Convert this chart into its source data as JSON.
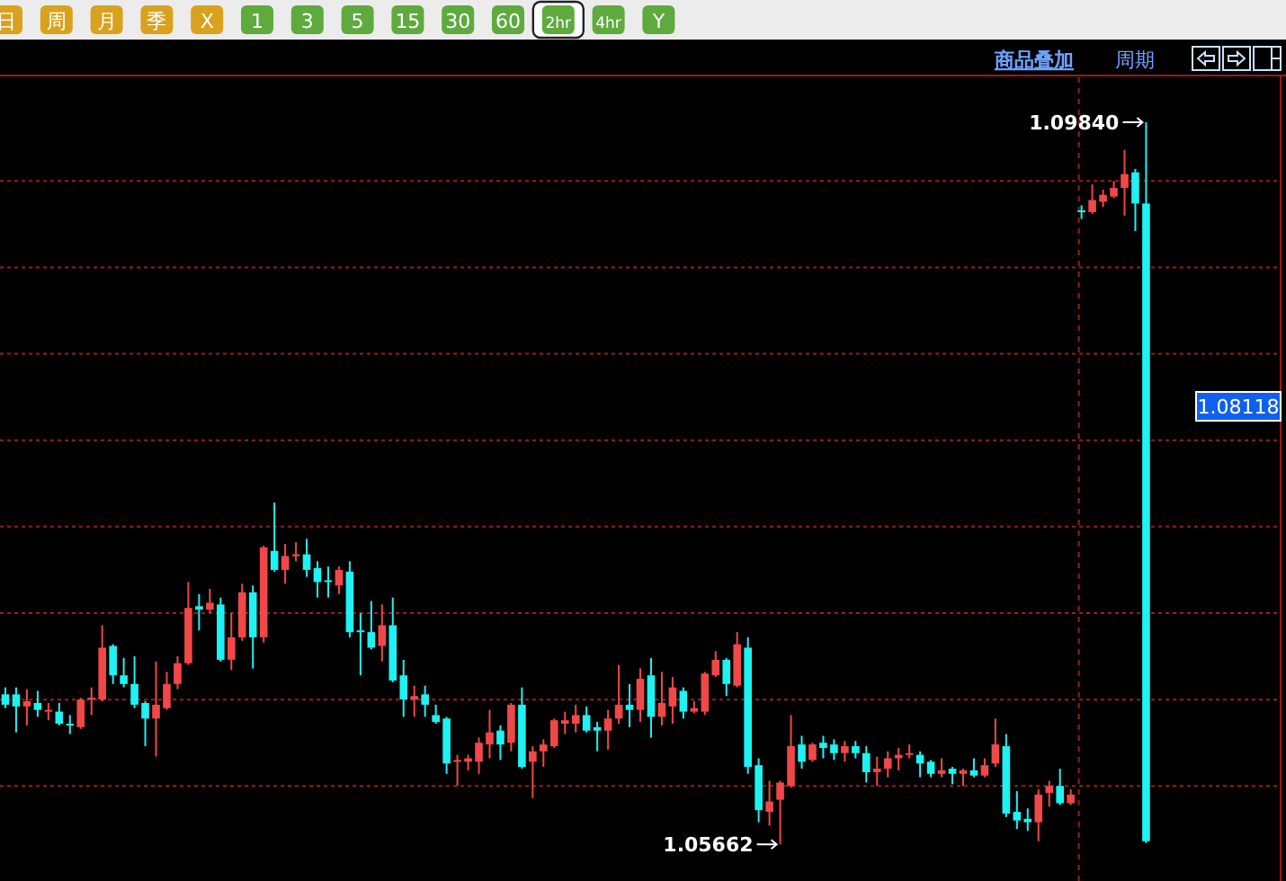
{
  "chart_data": {
    "type": "candlestick",
    "categories": [
      null,
      null,
      null,
      null,
      null,
      null,
      null,
      null,
      null,
      null,
      null,
      null,
      null,
      null,
      null,
      null,
      null,
      null,
      null,
      null,
      null,
      null,
      null,
      null,
      null,
      null,
      null,
      null,
      null,
      null,
      null,
      null,
      null,
      null,
      null,
      null,
      null,
      null,
      null,
      null,
      null,
      null,
      null,
      null,
      null,
      null,
      null,
      null,
      null,
      null,
      null,
      null,
      null,
      null,
      null,
      null,
      null,
      null,
      null,
      null,
      null,
      null,
      null,
      null,
      null,
      null,
      null,
      null,
      null,
      null,
      null,
      null,
      null,
      null,
      null,
      null,
      null,
      null,
      null,
      null,
      null,
      null,
      null,
      null,
      null,
      null,
      null,
      null,
      null,
      null,
      null,
      null,
      null,
      null,
      null,
      null,
      null,
      null,
      null,
      null,
      null,
      null,
      null,
      null,
      null,
      null,
      null
    ],
    "ohlc": [
      [
        1.0653,
        1.0657,
        1.0645,
        1.0647
      ],
      [
        1.0653,
        1.0657,
        1.0631,
        1.0646
      ],
      [
        1.0646,
        1.0656,
        1.0635,
        1.0649
      ],
      [
        1.0648,
        1.0655,
        1.064,
        1.0644
      ],
      [
        1.0643,
        1.0648,
        1.0638,
        1.0644
      ],
      [
        1.0643,
        1.0648,
        1.0635,
        1.0636
      ],
      [
        1.0636,
        1.0641,
        1.063,
        1.0635
      ],
      [
        1.0634,
        1.0651,
        1.0633,
        1.065
      ],
      [
        1.065,
        1.0657,
        1.0641,
        1.0651
      ],
      [
        1.065,
        1.0693,
        1.0649,
        1.068
      ],
      [
        1.0681,
        1.0682,
        1.0659,
        1.0664
      ],
      [
        1.0664,
        1.0674,
        1.0657,
        1.0659
      ],
      [
        1.0659,
        1.0675,
        1.0645,
        1.0647
      ],
      [
        1.0648,
        1.0649,
        1.0623,
        1.0639
      ],
      [
        1.0639,
        1.0672,
        1.0617,
        1.0647
      ],
      [
        1.0645,
        1.0666,
        1.0644,
        1.0659
      ],
      [
        1.0659,
        1.0675,
        1.0656,
        1.0671
      ],
      [
        1.0671,
        1.0718,
        1.067,
        1.0703
      ],
      [
        1.0704,
        1.0711,
        1.069,
        1.0702
      ],
      [
        1.0702,
        1.0714,
        1.07,
        1.0706
      ],
      [
        1.0705,
        1.0709,
        1.0672,
        1.0673
      ],
      [
        1.0673,
        1.07,
        1.0667,
        1.0686
      ],
      [
        1.0686,
        1.0717,
        1.0684,
        1.0712
      ],
      [
        1.0712,
        1.0716,
        1.0668,
        1.0686
      ],
      [
        1.0686,
        1.0739,
        1.0683,
        1.0738
      ],
      [
        1.0736,
        1.0764,
        1.0724,
        1.0725
      ],
      [
        1.0725,
        1.074,
        1.0717,
        1.0733
      ],
      [
        1.0733,
        1.0741,
        1.073,
        1.0734
      ],
      [
        1.0734,
        1.0743,
        1.0721,
        1.0725
      ],
      [
        1.0726,
        1.073,
        1.0709,
        1.0718
      ],
      [
        1.0719,
        1.0727,
        1.0709,
        1.0718
      ],
      [
        1.0716,
        1.0727,
        1.0711,
        1.0725
      ],
      [
        1.0724,
        1.073,
        1.0686,
        1.0689
      ],
      [
        1.069,
        1.07,
        1.0664,
        1.0689
      ],
      [
        1.0689,
        1.0707,
        1.0679,
        1.068
      ],
      [
        1.0681,
        1.0705,
        1.0672,
        1.0693
      ],
      [
        1.0693,
        1.0709,
        1.066,
        1.0661
      ],
      [
        1.0664,
        1.0673,
        1.064,
        1.065
      ],
      [
        1.065,
        1.0658,
        1.064,
        1.0652
      ],
      [
        1.0653,
        1.0658,
        1.064,
        1.0647
      ],
      [
        1.0641,
        1.0647,
        1.0636,
        1.0637
      ],
      [
        1.0639,
        1.064,
        1.0607,
        1.0613
      ],
      [
        1.0614,
        1.0618,
        1.06,
        1.0615
      ],
      [
        1.0614,
        1.0618,
        1.0609,
        1.0616
      ],
      [
        1.0614,
        1.0628,
        1.0607,
        1.0625
      ],
      [
        1.0624,
        1.0644,
        1.0616,
        1.0631
      ],
      [
        1.0632,
        1.0635,
        1.0615,
        1.0624
      ],
      [
        1.0625,
        1.0648,
        1.062,
        1.0647
      ],
      [
        1.0647,
        1.0657,
        1.061,
        1.0611
      ],
      [
        1.0614,
        1.0623,
        1.0593,
        1.062
      ],
      [
        1.062,
        1.0627,
        1.0611,
        1.0624
      ],
      [
        1.0623,
        1.0639,
        1.0622,
        1.0638
      ],
      [
        1.0636,
        1.0643,
        1.063,
        1.0638
      ],
      [
        1.0636,
        1.0647,
        1.0631,
        1.0641
      ],
      [
        1.0641,
        1.0646,
        1.0631,
        1.0632
      ],
      [
        1.0634,
        1.0637,
        1.062,
        1.0632
      ],
      [
        1.0632,
        1.0644,
        1.0621,
        1.0639
      ],
      [
        1.0639,
        1.067,
        1.0636,
        1.0647
      ],
      [
        1.0647,
        1.0659,
        1.0634,
        1.0644
      ],
      [
        1.0644,
        1.0668,
        1.0637,
        1.0662
      ],
      [
        1.0664,
        1.0674,
        1.0628,
        1.064
      ],
      [
        1.064,
        1.0666,
        1.0635,
        1.0648
      ],
      [
        1.0646,
        1.0663,
        1.0636,
        1.0657
      ],
      [
        1.0655,
        1.0657,
        1.0639,
        1.0643
      ],
      [
        1.0643,
        1.0649,
        1.0642,
        1.0645
      ],
      [
        1.0643,
        1.0666,
        1.0641,
        1.0665
      ],
      [
        1.0664,
        1.0678,
        1.0663,
        1.0673
      ],
      [
        1.0673,
        1.0674,
        1.0652,
        1.0659
      ],
      [
        1.0658,
        1.0689,
        1.0657,
        1.0682
      ],
      [
        1.068,
        1.0686,
        1.0607,
        1.0611
      ],
      [
        1.0612,
        1.0616,
        1.0579,
        1.0586
      ],
      [
        1.0585,
        1.0603,
        1.0577,
        1.0591
      ],
      [
        1.0592,
        1.0603,
        1.05662,
        1.0602
      ],
      [
        1.06,
        1.0641,
        1.0599,
        1.0623
      ],
      [
        1.0624,
        1.0629,
        1.061,
        1.0614
      ],
      [
        1.0615,
        1.0625,
        1.0614,
        1.0624
      ],
      [
        1.0625,
        1.0629,
        1.0616,
        1.0622
      ],
      [
        1.0624,
        1.0627,
        1.0615,
        1.0619
      ],
      [
        1.0619,
        1.0626,
        1.0614,
        1.0623
      ],
      [
        1.0623,
        1.0626,
        1.0616,
        1.0619
      ],
      [
        1.0619,
        1.0623,
        1.0602,
        1.0608
      ],
      [
        1.0608,
        1.0617,
        1.06,
        1.061
      ],
      [
        1.061,
        1.062,
        1.0605,
        1.0616
      ],
      [
        1.0616,
        1.0622,
        1.0609,
        1.0618
      ],
      [
        1.0618,
        1.0624,
        1.0616,
        1.0619
      ],
      [
        1.0618,
        1.062,
        1.0605,
        1.0613
      ],
      [
        1.0614,
        1.0615,
        1.0605,
        1.0607
      ],
      [
        1.0607,
        1.0616,
        1.0605,
        1.0609
      ],
      [
        1.061,
        1.0611,
        1.0601,
        1.0607
      ],
      [
        1.0607,
        1.061,
        1.06,
        1.0609
      ],
      [
        1.0609,
        1.0616,
        1.0605,
        1.0606
      ],
      [
        1.0606,
        1.0616,
        1.0605,
        1.0612
      ],
      [
        1.0613,
        1.0639,
        1.0611,
        1.0624
      ],
      [
        1.0623,
        1.063,
        1.0582,
        1.0584
      ],
      [
        1.0585,
        1.0597,
        1.0575,
        1.058
      ],
      [
        1.0581,
        1.0587,
        1.0574,
        1.0579
      ],
      [
        1.0579,
        1.0598,
        1.0568,
        1.0595
      ],
      [
        1.0596,
        1.0603,
        1.0588,
        1.06
      ],
      [
        1.06,
        1.061,
        1.0589,
        1.059
      ],
      [
        1.059,
        1.0598,
        1.0589,
        1.0595
      ],
      [
        1.0933,
        1.0936,
        1.0928,
        1.0932
      ],
      [
        1.0932,
        1.0948,
        1.0931,
        1.0939
      ],
      [
        1.0938,
        1.0945,
        1.0935,
        1.0942
      ],
      [
        1.0941,
        1.095,
        1.094,
        1.0946
      ],
      [
        1.0946,
        1.0968,
        1.093,
        1.0954
      ],
      [
        1.0955,
        1.0957,
        1.0921,
        1.0937
      ],
      [
        1.0937,
        1.0984,
        1.0567,
        1.0568
      ]
    ],
    "ylim": [
      1.0545,
      1.101
    ],
    "yticks": [
      {
        "value": 1.06,
        "label": null
      },
      {
        "value": 1.065,
        "label": null
      },
      {
        "value": 1.07,
        "label": null
      },
      {
        "value": 1.075,
        "label": null
      },
      {
        "value": 1.08,
        "label": null
      },
      {
        "value": 1.085,
        "label": null
      },
      {
        "value": 1.09,
        "label": null
      },
      {
        "value": 1.095,
        "label": null
      }
    ],
    "grid": "y",
    "annotations": [
      "日",
      "周",
      "月",
      "季",
      "X",
      "1",
      "3",
      "5",
      "15",
      "30",
      "60",
      "2hr",
      "4hr",
      "Y",
      "商品叠加",
      "周期",
      "1.09840",
      "1.05662",
      "1.08118"
    ]
  }
}
